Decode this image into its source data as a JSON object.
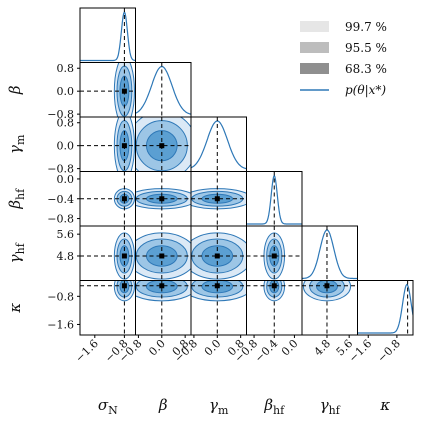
{
  "chart_data": {
    "type": "corner",
    "legend": [
      {
        "label": "99.7 %",
        "color": "#e6e6e6"
      },
      {
        "label": "95.5 %",
        "color": "#bdbdbd"
      },
      {
        "label": "68.3 %",
        "color": "#8f8f8f"
      },
      {
        "label": "p(θ|x*)",
        "color": "#2e78b7"
      }
    ],
    "colors": {
      "level_997": "#dbe9f6",
      "level_955": "#9dc6e6",
      "level_683": "#5b9fd2",
      "line": "#2e78b7",
      "truth": "#000000"
    },
    "parameters": [
      {
        "name": "σN",
        "label": "σ",
        "sub": "N",
        "range": [
          -2.0,
          -0.5
        ],
        "truth": -0.8,
        "post_mean": -0.8,
        "post_sd": 0.08,
        "ticks": [
          {
            "v": -1.6,
            "t": "−1.6"
          },
          {
            "v": -0.8,
            "t": "−0.8"
          }
        ]
      },
      {
        "name": "β",
        "label": "β",
        "sub": "",
        "range": [
          -0.9,
          1.0
        ],
        "truth": 0.0,
        "post_mean": 0.0,
        "post_sd": 0.35,
        "ticks": [
          {
            "v": -0.8,
            "t": "−0.8"
          },
          {
            "v": 0.0,
            "t": "0.0"
          },
          {
            "v": 0.8,
            "t": "0.8"
          }
        ]
      },
      {
        "name": "γm",
        "label": "γ",
        "sub": "m",
        "range": [
          -0.9,
          1.0
        ],
        "truth": 0.0,
        "post_mean": 0.0,
        "post_sd": 0.35,
        "ticks": [
          {
            "v": -0.8,
            "t": "−0.8"
          },
          {
            "v": 0.0,
            "t": "0.0"
          },
          {
            "v": 0.8,
            "t": "0.8"
          }
        ]
      },
      {
        "name": "βhf",
        "label": "β",
        "sub": "hf",
        "range": [
          -0.95,
          0.15
        ],
        "truth": -0.4,
        "post_mean": -0.4,
        "post_sd": 0.06,
        "ticks": [
          {
            "v": -0.8,
            "t": "−0.8"
          },
          {
            "v": -0.4,
            "t": "−0.4"
          },
          {
            "v": 0.0,
            "t": "0.0"
          }
        ]
      },
      {
        "name": "γhf",
        "label": "γ",
        "sub": "hf",
        "range": [
          3.9,
          5.9
        ],
        "truth": 4.8,
        "post_mean": 4.8,
        "post_sd": 0.25,
        "ticks": [
          {
            "v": 4.8,
            "t": "4.8"
          },
          {
            "v": 5.6,
            "t": "5.6"
          }
        ]
      },
      {
        "name": "κ",
        "label": "κ",
        "sub": "",
        "range": [
          -1.9,
          -0.35
        ],
        "truth": -0.5,
        "post_mean": -0.52,
        "post_sd": 0.12,
        "ticks": [
          {
            "v": -1.6,
            "t": "−1.6"
          },
          {
            "v": -0.8,
            "t": "−0.8"
          }
        ]
      }
    ]
  }
}
